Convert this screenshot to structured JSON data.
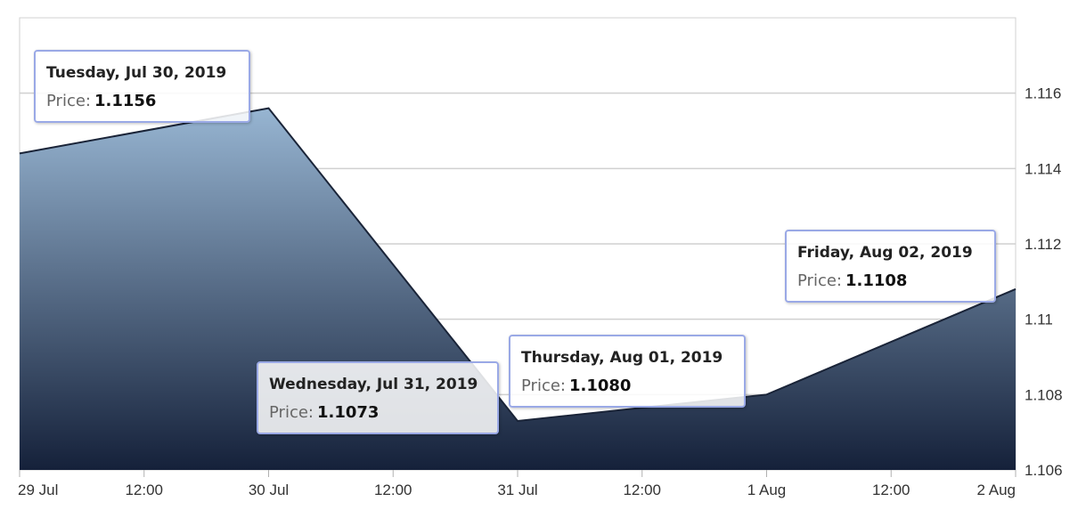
{
  "chart_data": {
    "type": "area",
    "x": [
      "2019-07-29",
      "2019-07-30",
      "2019-07-31",
      "2019-08-01",
      "2019-08-02"
    ],
    "series": [
      {
        "values": [
          1.1144,
          1.1156,
          1.1073,
          1.108,
          1.1108
        ]
      }
    ],
    "x_ticks": [
      "29 Jul",
      "12:00",
      "30 Jul",
      "12:00",
      "31 Jul",
      "12:00",
      "1 Aug",
      "12:00",
      "2 Aug"
    ],
    "y_ticks": [
      "1.106",
      "1.108",
      "1.11",
      "1.112",
      "1.114",
      "1.116"
    ],
    "ylim": [
      1.106,
      1.118
    ],
    "y_axis_side": "right",
    "grid": true,
    "legend": "none",
    "colors": {
      "area_top": "#97b5d2",
      "area_bottom": "#15213a",
      "line": "#1a2438",
      "grid": "#d0d0d0",
      "tooltip_border": "#9aa9e6"
    },
    "tooltips": [
      {
        "date": "Tuesday, Jul 30, 2019",
        "label": "Price:",
        "value": "1.1156"
      },
      {
        "date": "Wednesday, Jul 31, 2019",
        "label": "Price:",
        "value": "1.1073"
      },
      {
        "date": "Thursday, Aug 01, 2019",
        "label": "Price:",
        "value": "1.1080"
      },
      {
        "date": "Friday, Aug 02, 2019",
        "label": "Price:",
        "value": "1.1108"
      }
    ]
  }
}
